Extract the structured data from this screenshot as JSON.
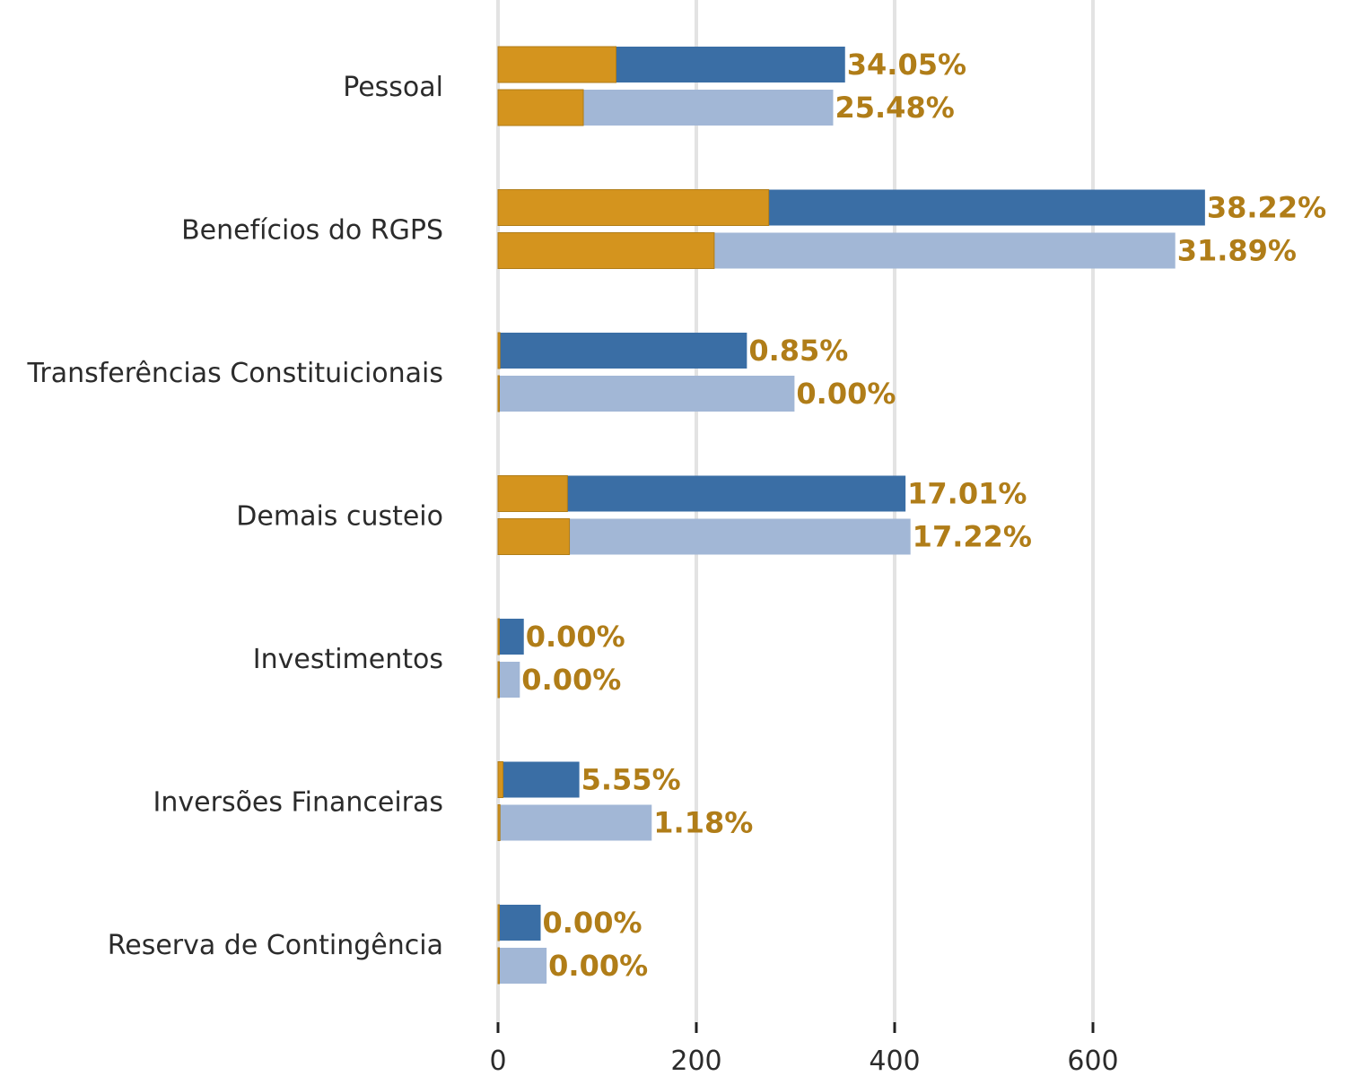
{
  "colors": {
    "overlay": "#d4941e",
    "overlay_stroke": "#b07d18",
    "series_a": "#3a6ea5",
    "series_b": "#a2b7d6",
    "label": "#b07d18",
    "grid": "#e3e3e3",
    "text": "#2b2b2b"
  },
  "chart_data": {
    "type": "bar",
    "orientation": "horizontal",
    "categories": [
      "Pessoal",
      "Benefícios do RGPS",
      "Transferências Constituicionais",
      "Demais custeio",
      "Investimentos",
      "Inversões Financeiras",
      "Reserva de Contingência"
    ],
    "series": [
      {
        "values": [
          350,
          713,
          251,
          411,
          26,
          82,
          43
        ],
        "overlay_values": [
          119,
          273,
          2,
          70,
          0,
          5,
          0
        ],
        "labels": [
          "34.05%",
          "38.22%",
          "0.85%",
          "17.01%",
          "0.00%",
          "5.55%",
          "0.00%"
        ]
      },
      {
        "values": [
          338,
          683,
          299,
          416,
          22,
          155,
          49
        ],
        "overlay_values": [
          86,
          218,
          0,
          72,
          0,
          2,
          0
        ],
        "labels": [
          "25.48%",
          "31.89%",
          "0.00%",
          "17.22%",
          "0.00%",
          "1.18%",
          "0.00%"
        ]
      }
    ],
    "xlim": [
      0,
      850
    ],
    "xticks": [
      0,
      200,
      400,
      600
    ],
    "xtick_labels": [
      "0",
      "200",
      "400",
      "600"
    ],
    "grid": true,
    "legend": "none"
  }
}
